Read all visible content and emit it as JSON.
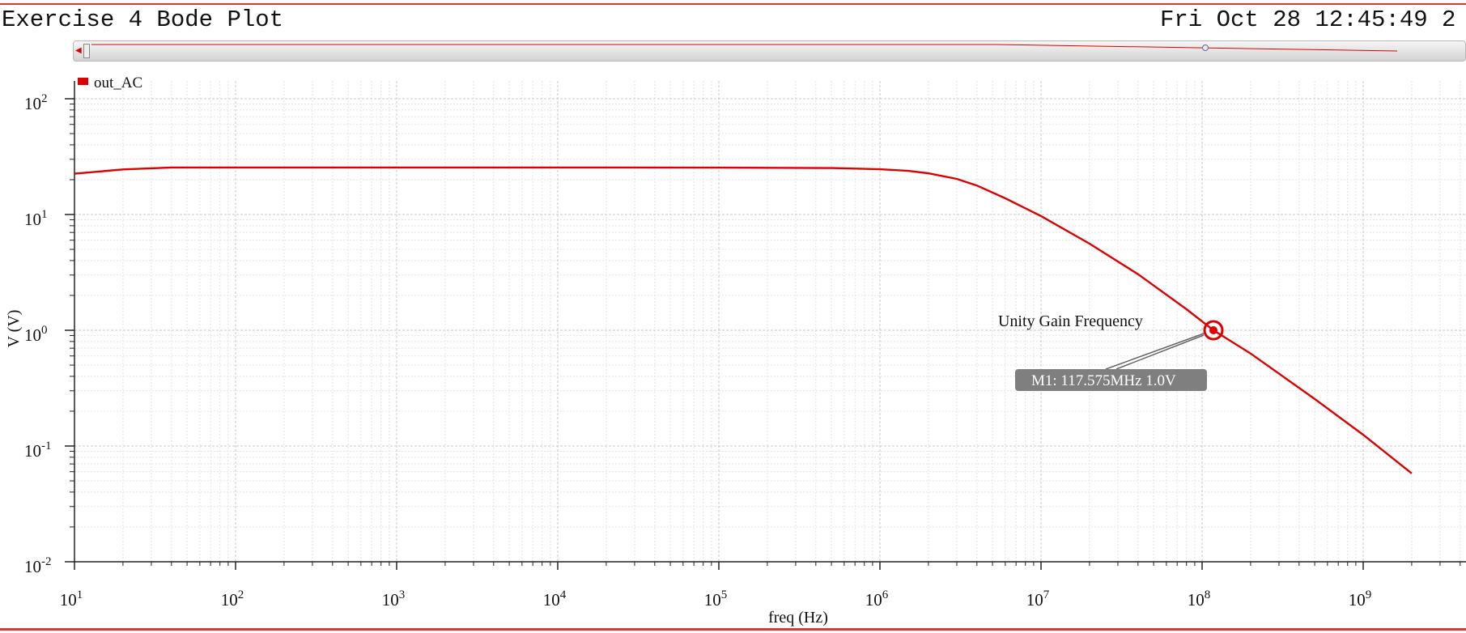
{
  "window": {
    "title": "Exercise 4 Bode Plot",
    "datetime": "Fri Oct 28 12:45:49 2"
  },
  "colors": {
    "trace": "#dd0000",
    "grid": "#cfcfcf",
    "marker_label_bg": "#7f7f7f",
    "border_line": "#d83a3a"
  },
  "chart_data": {
    "type": "line",
    "title": "",
    "xlabel": "freq (Hz)",
    "ylabel": "V (V)",
    "xscale": "log",
    "yscale": "log",
    "xlim": [
      10,
      10000000000
    ],
    "ylim": [
      0.01,
      100
    ],
    "x_ticks": [
      {
        "value": 10,
        "base": "10",
        "exp": "1"
      },
      {
        "value": 100,
        "base": "10",
        "exp": "2"
      },
      {
        "value": 1000,
        "base": "10",
        "exp": "3"
      },
      {
        "value": 10000,
        "base": "10",
        "exp": "4"
      },
      {
        "value": 100000,
        "base": "10",
        "exp": "5"
      },
      {
        "value": 1000000,
        "base": "10",
        "exp": "6"
      },
      {
        "value": 10000000,
        "base": "10",
        "exp": "7"
      },
      {
        "value": 100000000,
        "base": "10",
        "exp": "8"
      },
      {
        "value": 1000000000,
        "base": "10",
        "exp": "9"
      }
    ],
    "y_ticks": [
      {
        "value": 100,
        "base": "10",
        "exp": "2"
      },
      {
        "value": 10,
        "base": "10",
        "exp": "1"
      },
      {
        "value": 1,
        "base": "10",
        "exp": "0"
      },
      {
        "value": 0.1,
        "base": "10",
        "exp": "-1"
      },
      {
        "value": 0.01,
        "base": "10",
        "exp": "-2"
      }
    ],
    "legend": [
      {
        "name": "out_AC",
        "color": "#dd0000"
      }
    ],
    "legend_position": "top-left",
    "series": [
      {
        "name": "out_AC",
        "x": [
          10,
          20,
          40,
          100,
          1000,
          10000,
          100000,
          500000,
          1000000,
          1500000,
          2000000,
          3000000,
          4000000,
          6000000,
          10000000,
          20000000,
          40000000,
          80000000,
          117575000,
          200000000,
          500000000,
          1000000000,
          2000000000
        ],
        "y": [
          22.5,
          24.5,
          25.5,
          25.5,
          25.5,
          25.5,
          25.4,
          25.2,
          24.6,
          23.8,
          22.7,
          20.3,
          17.8,
          13.8,
          9.7,
          5.6,
          3.05,
          1.52,
          1.0,
          0.63,
          0.255,
          0.125,
          0.058
        ]
      }
    ],
    "annotations": [
      {
        "text": "Unity Gain Frequency",
        "x": 117575000,
        "y": 1.0
      }
    ],
    "markers": [
      {
        "name": "M1",
        "label": "M1: 117.575MHz 1.0V",
        "x": 117575000,
        "y": 1.0
      }
    ]
  }
}
